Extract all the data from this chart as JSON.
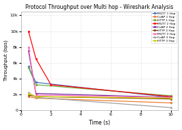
{
  "title": "Protocol Throughput over Multi hop - Wireshark Analysis",
  "xlabel": "Time (s)",
  "ylabel": "Throughput (bps)",
  "series": [
    {
      "label": "MQTT 1 Hop",
      "color": "#4472C4",
      "marker": "o",
      "x": [
        0.5,
        1,
        10
      ],
      "y": [
        5500,
        3500,
        1600
      ]
    },
    {
      "label": "CoAP 1 Hop",
      "color": "#ED7D31",
      "marker": "o",
      "x": [
        0.5,
        1,
        10
      ],
      "y": [
        1700,
        1500,
        900
      ]
    },
    {
      "label": "HTTP 1 Hop",
      "color": "#70AD47",
      "marker": "o",
      "x": [
        0.5,
        1,
        10
      ],
      "y": [
        5400,
        3200,
        1800
      ]
    },
    {
      "label": "MQTT 2 Hop",
      "color": "#FF0000",
      "marker": "s",
      "x": [
        0.5,
        1,
        2,
        10
      ],
      "y": [
        10000,
        6500,
        3200,
        1700
      ]
    },
    {
      "label": "CoAP 2 Hop",
      "color": "#7030A0",
      "marker": "s",
      "x": [
        0.5,
        1,
        10
      ],
      "y": [
        7500,
        2100,
        1600
      ]
    },
    {
      "label": "HTTP 2 Hop",
      "color": "#7B3F00",
      "marker": "s",
      "x": [
        0.5,
        1,
        10
      ],
      "y": [
        1900,
        1700,
        1400
      ]
    },
    {
      "label": "MQTT 3 Hop",
      "color": "#FF69B4",
      "marker": "^",
      "x": [
        0.5,
        1,
        10
      ],
      "y": [
        8000,
        1900,
        1600
      ]
    },
    {
      "label": "CoAP 3 Hop",
      "color": "#A0A0A0",
      "marker": "^",
      "x": [
        0.5,
        1,
        10
      ],
      "y": [
        2200,
        1600,
        300
      ]
    },
    {
      "label": "HTTP 3 Hop",
      "color": "#CCCC00",
      "marker": "^",
      "x": [
        0.5,
        1,
        10
      ],
      "y": [
        2100,
        1700,
        1500
      ]
    }
  ],
  "xlim": [
    0,
    10.5
  ],
  "ylim": [
    0,
    12500
  ],
  "ytick_vals": [
    0,
    2000,
    4000,
    6000,
    8000,
    10000,
    12000
  ],
  "ytick_labels": [
    "0",
    "2k",
    "4k",
    "6k",
    "8k",
    "10k",
    "12k"
  ],
  "xticks": [
    0,
    2,
    4,
    6,
    8,
    10
  ],
  "background_color": "#ffffff",
  "grid_color": "#E0E0E0"
}
